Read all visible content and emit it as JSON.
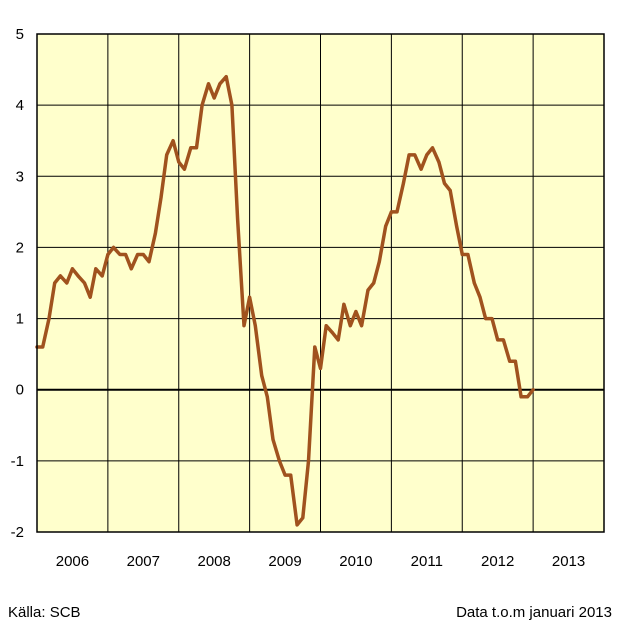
{
  "chart_data": {
    "type": "line",
    "title": "",
    "xlabel": "",
    "ylabel": "",
    "xlim": [
      2006.0,
      2014.0
    ],
    "ylim": [
      -2,
      5
    ],
    "y_ticks": [
      "5",
      "4",
      "3",
      "2",
      "1",
      "0",
      "-1",
      "-2"
    ],
    "x_tick_labels": [
      "2006",
      "2007",
      "2008",
      "2009",
      "2010",
      "2011",
      "2012",
      "2013"
    ],
    "grid": true,
    "legend": "none",
    "colors": {
      "line": "#A0521E",
      "plot_background": "#FFFFCC",
      "grid": "#000000"
    },
    "series": [
      {
        "points": [
          [
            2006.0,
            0.6
          ],
          [
            2006.08,
            0.6
          ],
          [
            2006.17,
            1.0
          ],
          [
            2006.25,
            1.5
          ],
          [
            2006.33,
            1.6
          ],
          [
            2006.42,
            1.5
          ],
          [
            2006.5,
            1.7
          ],
          [
            2006.58,
            1.6
          ],
          [
            2006.67,
            1.5
          ],
          [
            2006.75,
            1.3
          ],
          [
            2006.83,
            1.7
          ],
          [
            2006.92,
            1.6
          ],
          [
            2007.0,
            1.9
          ],
          [
            2007.08,
            2.0
          ],
          [
            2007.17,
            1.9
          ],
          [
            2007.25,
            1.9
          ],
          [
            2007.33,
            1.7
          ],
          [
            2007.42,
            1.9
          ],
          [
            2007.5,
            1.9
          ],
          [
            2007.58,
            1.8
          ],
          [
            2007.67,
            2.2
          ],
          [
            2007.75,
            2.7
          ],
          [
            2007.83,
            3.3
          ],
          [
            2007.92,
            3.5
          ],
          [
            2008.0,
            3.2
          ],
          [
            2008.08,
            3.1
          ],
          [
            2008.17,
            3.4
          ],
          [
            2008.25,
            3.4
          ],
          [
            2008.33,
            4.0
          ],
          [
            2008.42,
            4.3
          ],
          [
            2008.5,
            4.1
          ],
          [
            2008.58,
            4.3
          ],
          [
            2008.67,
            4.4
          ],
          [
            2008.75,
            4.0
          ],
          [
            2008.83,
            2.4
          ],
          [
            2008.92,
            0.9
          ],
          [
            2009.0,
            1.3
          ],
          [
            2009.08,
            0.9
          ],
          [
            2009.17,
            0.2
          ],
          [
            2009.25,
            -0.1
          ],
          [
            2009.33,
            -0.7
          ],
          [
            2009.42,
            -1.0
          ],
          [
            2009.5,
            -1.2
          ],
          [
            2009.58,
            -1.2
          ],
          [
            2009.67,
            -1.9
          ],
          [
            2009.75,
            -1.8
          ],
          [
            2009.83,
            -1.0
          ],
          [
            2009.92,
            0.6
          ],
          [
            2010.0,
            0.3
          ],
          [
            2010.08,
            0.9
          ],
          [
            2010.17,
            0.8
          ],
          [
            2010.25,
            0.7
          ],
          [
            2010.33,
            1.2
          ],
          [
            2010.42,
            0.9
          ],
          [
            2010.5,
            1.1
          ],
          [
            2010.58,
            0.9
          ],
          [
            2010.67,
            1.4
          ],
          [
            2010.75,
            1.5
          ],
          [
            2010.83,
            1.8
          ],
          [
            2010.92,
            2.3
          ],
          [
            2011.0,
            2.5
          ],
          [
            2011.08,
            2.5
          ],
          [
            2011.17,
            2.9
          ],
          [
            2011.25,
            3.3
          ],
          [
            2011.33,
            3.3
          ],
          [
            2011.42,
            3.1
          ],
          [
            2011.5,
            3.3
          ],
          [
            2011.58,
            3.4
          ],
          [
            2011.67,
            3.2
          ],
          [
            2011.75,
            2.9
          ],
          [
            2011.83,
            2.8
          ],
          [
            2011.92,
            2.3
          ],
          [
            2012.0,
            1.9
          ],
          [
            2012.08,
            1.9
          ],
          [
            2012.17,
            1.5
          ],
          [
            2012.25,
            1.3
          ],
          [
            2012.33,
            1.0
          ],
          [
            2012.42,
            1.0
          ],
          [
            2012.5,
            0.7
          ],
          [
            2012.58,
            0.7
          ],
          [
            2012.67,
            0.4
          ],
          [
            2012.75,
            0.4
          ],
          [
            2012.83,
            -0.1
          ],
          [
            2012.92,
            -0.1
          ],
          [
            2013.0,
            0.0
          ]
        ]
      }
    ]
  },
  "footer": {
    "source": "Källa: SCB",
    "note": "Data t.o.m januari 2013"
  }
}
